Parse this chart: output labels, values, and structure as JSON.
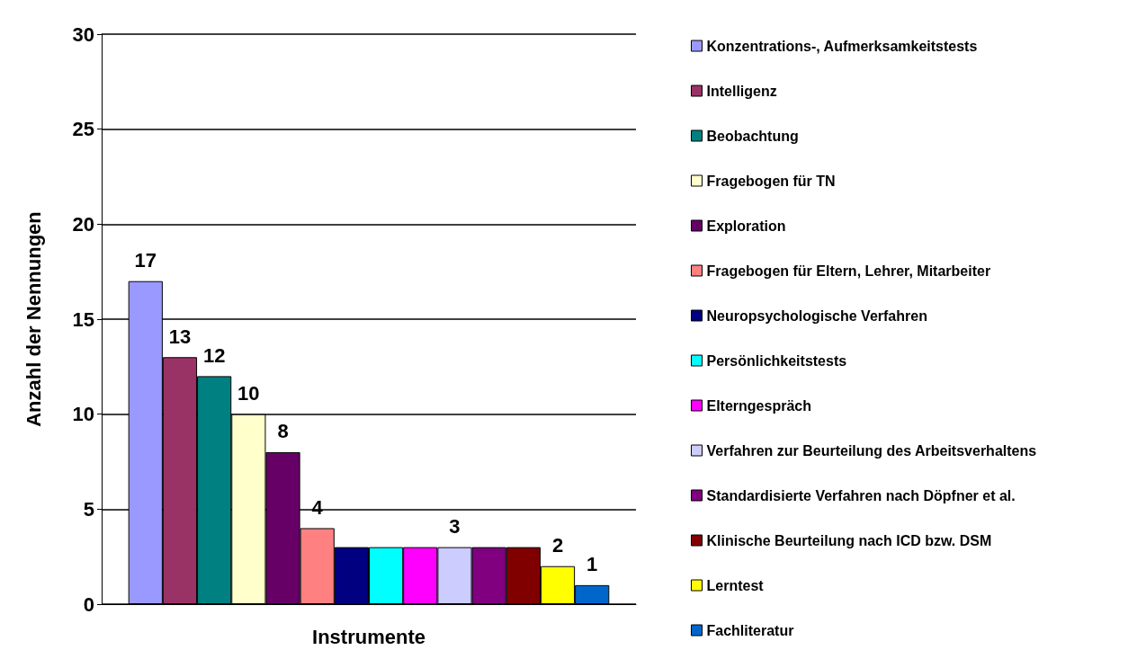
{
  "chart_data": {
    "type": "bar",
    "xlabel": "Instrumente",
    "ylabel": "Anzahl der Nennungen",
    "categories": [
      null
    ],
    "ylim": [
      0,
      30
    ],
    "yticks": [
      0,
      5,
      10,
      15,
      20,
      25,
      30
    ],
    "grid": "y",
    "legend": "right",
    "series": [
      {
        "name": "Konzentrations-, Aufmerksamkeitstests",
        "color": "#9999ff",
        "values": [
          17
        ],
        "value_labels": [
          "17"
        ]
      },
      {
        "name": "Intelligenz",
        "color": "#993366",
        "values": [
          13
        ],
        "value_labels": [
          "13"
        ]
      },
      {
        "name": "Beobachtung",
        "color": "#008080",
        "values": [
          12
        ],
        "value_labels": [
          "12"
        ]
      },
      {
        "name": "Fragebogen für TN",
        "color": "#ffffcc",
        "values": [
          10
        ],
        "value_labels": [
          "10"
        ]
      },
      {
        "name": "Exploration",
        "color": "#660066",
        "values": [
          8
        ],
        "value_labels": [
          "8"
        ]
      },
      {
        "name": "Fragebogen für Eltern, Lehrer, Mitarbeiter",
        "color": "#ff8080",
        "values": [
          4
        ],
        "value_labels": [
          "4"
        ]
      },
      {
        "name": "Neuropsychologische Verfahren",
        "color": "#000080",
        "values": [
          3
        ],
        "value_labels": [
          null
        ]
      },
      {
        "name": "Persönlichkeitstests",
        "color": "#00ffff",
        "values": [
          3
        ],
        "value_labels": [
          null
        ]
      },
      {
        "name": "Elterngespräch",
        "color": "#ff00ff",
        "values": [
          3
        ],
        "value_labels": [
          null
        ]
      },
      {
        "name": "Verfahren zur Beurteilung des Arbeitsverhaltens",
        "color": "#ccccff",
        "values": [
          3
        ],
        "value_labels": [
          "3"
        ]
      },
      {
        "name": "Standardisierte Verfahren nach Döpfner et al.",
        "color": "#800080",
        "values": [
          3
        ],
        "value_labels": [
          null
        ]
      },
      {
        "name": "Klinische Beurteilung nach ICD bzw. DSM",
        "color": "#800000",
        "values": [
          3
        ],
        "value_labels": [
          null
        ]
      },
      {
        "name": "Lerntest",
        "color": "#ffff00",
        "values": [
          2
        ],
        "value_labels": [
          "2"
        ]
      },
      {
        "name": "Fachliteratur",
        "color": "#0066cc",
        "values": [
          1
        ],
        "value_labels": [
          "1"
        ]
      }
    ]
  }
}
